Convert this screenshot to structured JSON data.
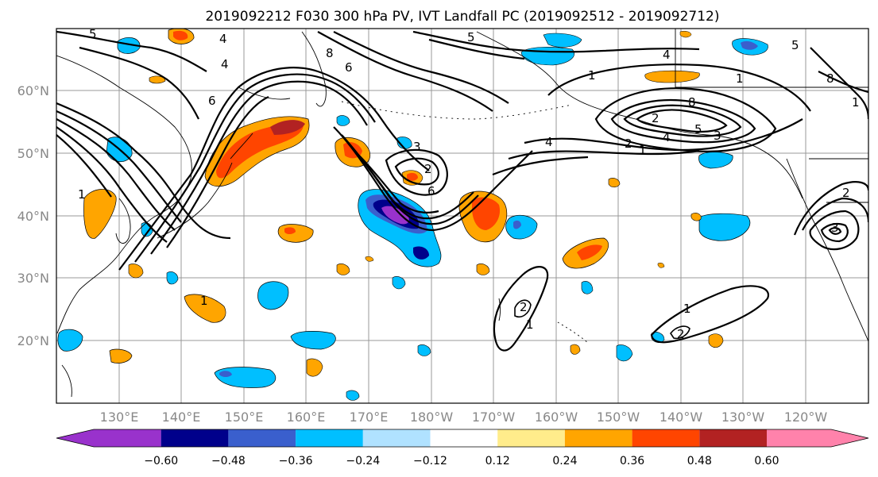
{
  "title": "2019092212 F030 300 hPa PV, IVT Landfall PC (2019092512 - 2019092712)",
  "map": {
    "lat_ticks": [
      "60°N",
      "50°N",
      "40°N",
      "30°N",
      "20°N"
    ],
    "lon_ticks": [
      "130°E",
      "140°E",
      "150°E",
      "160°E",
      "170°E",
      "180°W",
      "170°W",
      "160°W",
      "150°W",
      "140°W",
      "130°W",
      "120°W"
    ],
    "contour_labels": [
      "5",
      "4",
      "6",
      "8",
      "6",
      "4",
      "1",
      "3",
      "2",
      "6",
      "5",
      "4",
      "1",
      "8",
      "4",
      "5",
      "3",
      "1",
      "2",
      "1",
      "2",
      "4",
      "1",
      "2",
      "2",
      "1",
      "1",
      "2",
      "3",
      "8",
      "1",
      "5"
    ]
  },
  "colorbar": {
    "labels": [
      "−0.60",
      "−0.48",
      "−0.36",
      "−0.24",
      "−0.12",
      "0.12",
      "0.24",
      "0.36",
      "0.48",
      "0.60"
    ],
    "colors": [
      "#9932cc",
      "#00008b",
      "#3a5fcd",
      "#00bfff",
      "#b0e2ff",
      "#ffffff",
      "#ffec8b",
      "#ffa500",
      "#ff4500",
      "#b22222",
      "#ff82ab"
    ]
  }
}
